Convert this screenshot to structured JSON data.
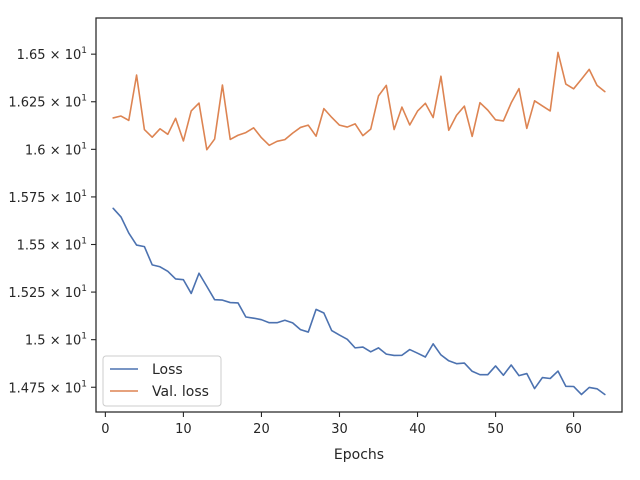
{
  "chart_data": {
    "type": "line",
    "title": "",
    "xlabel": "Epochs",
    "ylabel": "",
    "xlim": [
      -1.2,
      66.2
    ],
    "ylim": [
      14.62,
      16.69
    ],
    "grid": false,
    "legend_position": "bottom-left",
    "x_ticks": [
      0,
      10,
      20,
      30,
      40,
      50,
      60
    ],
    "x_tick_labels": [
      "0",
      "10",
      "20",
      "30",
      "40",
      "50",
      "60"
    ],
    "y_ticks": [
      14.75,
      15.0,
      15.25,
      15.5,
      15.75,
      16.0,
      16.25,
      16.5
    ],
    "y_tick_labels": [
      {
        "mantissa": "1.475",
        "exponent": "1"
      },
      {
        "mantissa": "1.5",
        "exponent": "1"
      },
      {
        "mantissa": "1.525",
        "exponent": "1"
      },
      {
        "mantissa": "1.55",
        "exponent": "1"
      },
      {
        "mantissa": "1.575",
        "exponent": "1"
      },
      {
        "mantissa": "1.6",
        "exponent": "1"
      },
      {
        "mantissa": "1.625",
        "exponent": "1"
      },
      {
        "mantissa": "1.65",
        "exponent": "1"
      }
    ],
    "x_times": "×",
    "x_base": "10",
    "x": [
      1,
      2,
      3,
      4,
      5,
      6,
      7,
      8,
      9,
      10,
      11,
      12,
      13,
      14,
      15,
      16,
      17,
      18,
      19,
      20,
      21,
      22,
      23,
      24,
      25,
      26,
      27,
      28,
      29,
      30,
      31,
      32,
      33,
      34,
      35,
      36,
      37,
      38,
      39,
      40,
      41,
      42,
      43,
      44,
      45,
      46,
      47,
      48,
      49,
      50,
      51,
      52,
      53,
      54,
      55,
      56,
      57,
      58,
      59,
      60,
      61,
      62,
      63,
      64
    ],
    "series": [
      {
        "name": "Loss",
        "color": "#4c72b0",
        "values": [
          15.69,
          15.645,
          15.56,
          15.497,
          15.489,
          15.393,
          15.383,
          15.359,
          15.319,
          15.315,
          15.243,
          15.349,
          15.28,
          15.21,
          15.208,
          15.195,
          15.193,
          15.119,
          15.113,
          15.105,
          15.089,
          15.089,
          15.102,
          15.088,
          15.053,
          15.04,
          15.159,
          15.14,
          15.048,
          15.024,
          15.002,
          14.957,
          14.961,
          14.936,
          14.957,
          14.924,
          14.917,
          14.918,
          14.948,
          14.929,
          14.909,
          14.978,
          14.92,
          14.889,
          14.874,
          14.877,
          14.834,
          14.816,
          14.816,
          14.862,
          14.813,
          14.867,
          14.811,
          14.822,
          14.743,
          14.801,
          14.796,
          14.835,
          14.755,
          14.754,
          14.712,
          14.749,
          14.742,
          14.712
        ]
      },
      {
        "name": "Val. loss",
        "color": "#dd8452",
        "values": [
          16.165,
          16.175,
          16.152,
          16.39,
          16.104,
          16.064,
          16.108,
          16.079,
          16.163,
          16.044,
          16.202,
          16.243,
          15.998,
          16.054,
          16.338,
          16.052,
          16.074,
          16.088,
          16.113,
          16.061,
          16.021,
          16.042,
          16.051,
          16.085,
          16.115,
          16.127,
          16.069,
          16.214,
          16.168,
          16.127,
          16.117,
          16.134,
          16.072,
          16.106,
          16.281,
          16.336,
          16.104,
          16.222,
          16.128,
          16.201,
          16.242,
          16.167,
          16.384,
          16.1,
          16.179,
          16.227,
          16.068,
          16.245,
          16.206,
          16.155,
          16.149,
          16.244,
          16.319,
          16.11,
          16.255,
          16.228,
          16.202,
          16.509,
          16.343,
          16.318,
          16.368,
          16.42,
          16.336,
          16.303
        ]
      }
    ]
  }
}
